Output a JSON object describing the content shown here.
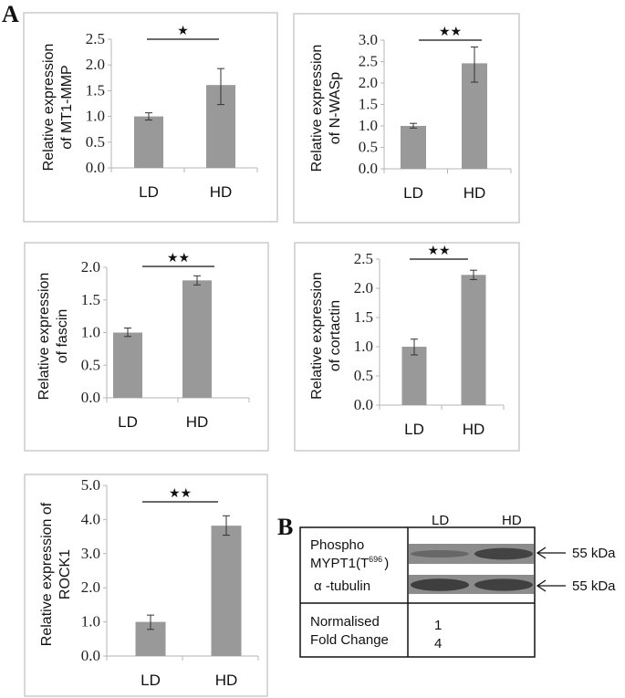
{
  "figure": {
    "panel_a_label": "A",
    "panel_b_label": "B"
  },
  "colors": {
    "bar": "#999999",
    "axis": "#b5b5b5",
    "frame": "#c4c4c4",
    "error": "#333333",
    "blot_bg": "#8c8c8c",
    "blot_band": "#3a3a3a"
  },
  "chart_data": [
    {
      "type": "bar",
      "title": "",
      "ylabel_lines": [
        "Relative expression",
        "of MT1-MMP"
      ],
      "categories": [
        "LD",
        "HD"
      ],
      "values": [
        1.0,
        1.61
      ],
      "error_low": [
        0.93,
        1.23
      ],
      "error_high": [
        1.07,
        1.93
      ],
      "yticks": [
        "0.0",
        "0.5",
        "1.0",
        "1.5",
        "2.0",
        "2.5"
      ],
      "ylim": [
        0,
        2.5
      ],
      "significance": "★",
      "grid": false
    },
    {
      "type": "bar",
      "title": "",
      "ylabel_lines": [
        "Relative expression",
        "of N-WASp"
      ],
      "categories": [
        "LD",
        "HD"
      ],
      "values": [
        1.0,
        2.46
      ],
      "error_low": [
        0.95,
        2.02
      ],
      "error_high": [
        1.06,
        2.84
      ],
      "yticks": [
        "0.0",
        "0.5",
        "1.0",
        "1.5",
        "2.0",
        "2.5",
        "3.0"
      ],
      "ylim": [
        0,
        3.0
      ],
      "significance": "★★",
      "grid": false
    },
    {
      "type": "bar",
      "title": "",
      "ylabel_lines": [
        "Relative expression",
        "of fascin"
      ],
      "categories": [
        "LD",
        "HD"
      ],
      "values": [
        1.0,
        1.8
      ],
      "error_low": [
        0.94,
        1.73
      ],
      "error_high": [
        1.07,
        1.87
      ],
      "yticks": [
        "0.0",
        "0.5",
        "1.0",
        "1.5",
        "2.0"
      ],
      "ylim": [
        0,
        2.0
      ],
      "significance": "★★",
      "grid": false
    },
    {
      "type": "bar",
      "title": "",
      "ylabel_lines": [
        "Relative expression",
        "of cortactin"
      ],
      "categories": [
        "LD",
        "HD"
      ],
      "values": [
        1.0,
        2.23
      ],
      "error_low": [
        0.86,
        2.15
      ],
      "error_high": [
        1.13,
        2.31
      ],
      "yticks": [
        "0.0",
        "0.5",
        "1.0",
        "1.5",
        "2.0",
        "2.5"
      ],
      "ylim": [
        0,
        2.5
      ],
      "significance": "★★",
      "grid": false
    },
    {
      "type": "bar",
      "title": "",
      "ylabel_lines": [
        "Relative expression of",
        "ROCK1"
      ],
      "categories": [
        "LD",
        "HD"
      ],
      "values": [
        1.0,
        3.82
      ],
      "error_low": [
        0.78,
        3.54
      ],
      "error_high": [
        1.2,
        4.11
      ],
      "yticks": [
        "0.0",
        "1.0",
        "2.0",
        "3.0",
        "4.0",
        "5.0"
      ],
      "ylim": [
        0,
        5.0
      ],
      "significance": "★★",
      "grid": false
    }
  ],
  "western_blot": {
    "columns": [
      "LD",
      "HD"
    ],
    "rows": [
      {
        "label_line1": "Phospho",
        "label_line2": "MYPT1(T",
        "superscript": "696",
        "label_close": ")",
        "marker": "55 kDa"
      },
      {
        "label_line1": "α -tubulin",
        "marker": "55 kDa"
      }
    ],
    "fold_change_label_line1": "Normalised",
    "fold_change_label_line2": "Fold Change",
    "fold_change_values": [
      "1",
      "4"
    ],
    "band_intensity_ld": [
      0.25,
      0.95
    ],
    "band_intensity_hd": [
      0.85,
      0.9
    ]
  }
}
